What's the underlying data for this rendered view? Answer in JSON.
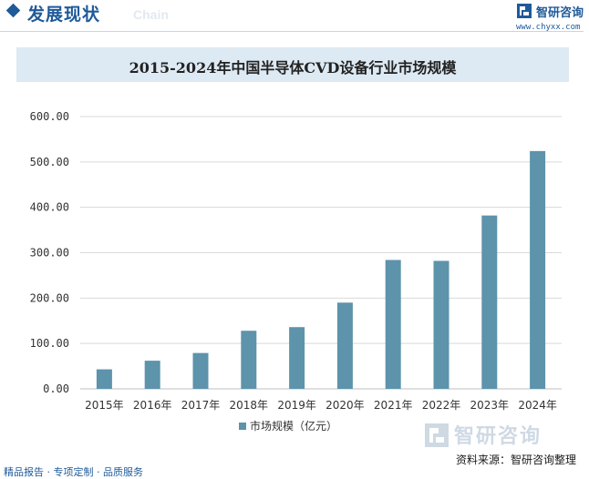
{
  "header": {
    "section_title": "发展现状",
    "ghost_word": "Chain",
    "brand_name": "智研咨询",
    "brand_url": "www.chyxx.com"
  },
  "colors": {
    "brand": "#1f5a99",
    "bar": "#5d93ab",
    "title_band": "#dde9f3"
  },
  "chart_data": {
    "type": "bar",
    "title": "2015-2024年中国半导体CVD设备行业市场规模",
    "categories": [
      "2015年",
      "2016年",
      "2017年",
      "2018年",
      "2019年",
      "2020年",
      "2021年",
      "2022年",
      "2023年",
      "2024年"
    ],
    "series": [
      {
        "name": "市场规模（亿元）",
        "values": [
          43,
          62,
          79,
          128,
          136,
          190,
          284,
          282,
          382,
          524
        ]
      }
    ],
    "yticks": [
      "0.00",
      "100.00",
      "200.00",
      "300.00",
      "400.00",
      "500.00",
      "600.00"
    ],
    "ylim": [
      0,
      600
    ],
    "xlabel": "",
    "ylabel": "",
    "grid": true,
    "legend_position": "bottom-center"
  },
  "watermark_text": "智研咨询",
  "source_text": "资料来源：智研咨询整理",
  "footer_text": "精品报告 · 专项定制 · 品质服务"
}
